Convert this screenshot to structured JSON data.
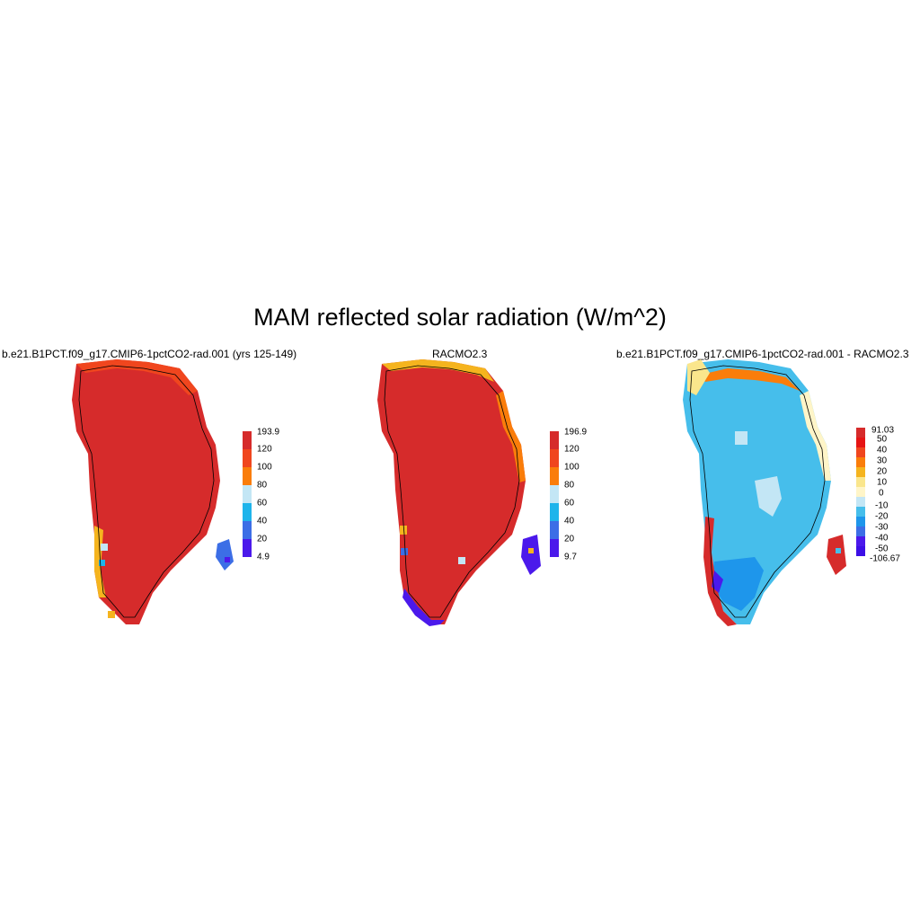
{
  "title": "MAM reflected solar radiation (W/m^2)",
  "panels": [
    {
      "title": "b.e21.B1PCT.f09_g17.CMIP6-1pctCO2-rad.001 (yrs 125-149)",
      "colorbar": {
        "labels": [
          "193.9",
          "120",
          "100",
          "80",
          "60",
          "40",
          "20",
          "4.9"
        ],
        "colors": [
          "#d62b2b",
          "#f0461e",
          "#fa7d0a",
          "#f5b41e",
          "#c3e6f5",
          "#1eb4eb",
          "#3c6ee6",
          "#4b19eb"
        ]
      }
    },
    {
      "title": "RACMO2.3",
      "colorbar": {
        "labels": [
          "196.9",
          "120",
          "100",
          "80",
          "60",
          "40",
          "20",
          "9.7"
        ],
        "colors": [
          "#d62b2b",
          "#f0461e",
          "#fa7d0a",
          "#f5b41e",
          "#c3e6f5",
          "#1eb4eb",
          "#3c6ee6",
          "#4b19eb"
        ]
      }
    },
    {
      "title": "b.e21.B1PCT.f09_g17.CMIP6-1pctCO2-rad.001 - RACMO2.3",
      "colorbar": {
        "labels": [
          "91.03",
          "50",
          "40",
          "30",
          "20",
          "10",
          "0",
          "-10",
          "-20",
          "-30",
          "-40",
          "-50",
          "-106.67"
        ],
        "colors": [
          "#d62b2b",
          "#e61414",
          "#f0461e",
          "#fa7d0a",
          "#f5b41e",
          "#fae68c",
          "#fff5c8",
          "#c3e6f5",
          "#46beeb",
          "#1e96eb",
          "#3c6ee6",
          "#4b19eb",
          "#3c0fe6"
        ]
      }
    }
  ],
  "colors": {
    "ice_high": "#d62b2b",
    "edge_orange": "#f0461e",
    "diff_interior": "#46beeb",
    "diff_light": "#c3e6f5"
  }
}
